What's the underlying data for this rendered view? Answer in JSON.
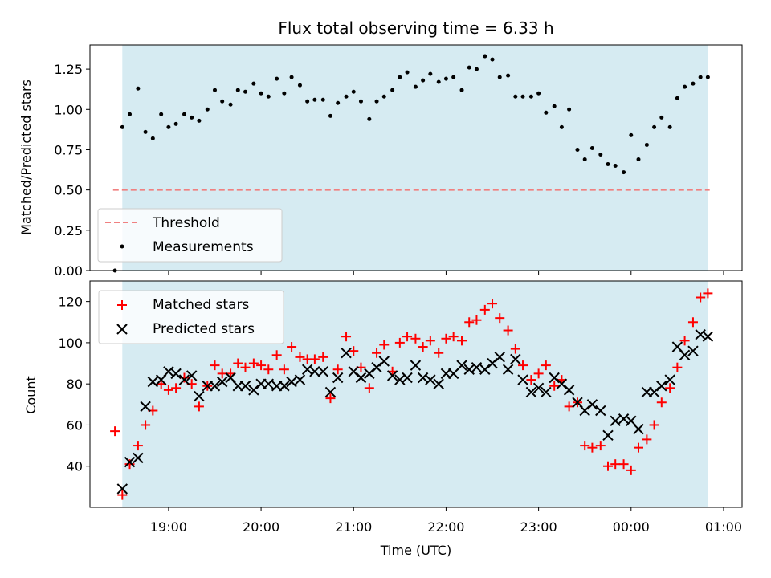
{
  "chart_data": [
    {
      "type": "scatter",
      "title": "Flux total observing time = 6.33 h",
      "ylabel": "Matched/Predicted stars",
      "xlabel": "",
      "ylim": [
        0,
        1.4
      ],
      "xlim_hours": [
        18.15,
        25.2
      ],
      "yticks": [
        0.0,
        0.25,
        0.5,
        0.75,
        1.0,
        1.25
      ],
      "ytick_labels": [
        "0.00",
        "0.25",
        "0.50",
        "0.75",
        "1.00",
        "1.25"
      ],
      "shaded_region_hours": [
        18.5,
        24.83
      ],
      "threshold": {
        "name": "Threshold",
        "value": 0.5,
        "from_hours": 18.4,
        "to_hours": 24.85,
        "color": "#f08080"
      },
      "series": [
        {
          "name": "Measurements",
          "color": "#000000",
          "marker": "dot",
          "x": [
            18.42,
            18.5,
            18.58,
            18.67,
            18.75,
            18.83,
            18.92,
            19.0,
            19.08,
            19.17,
            19.25,
            19.33,
            19.42,
            19.5,
            19.58,
            19.67,
            19.75,
            19.83,
            19.92,
            20.0,
            20.08,
            20.17,
            20.25,
            20.33,
            20.42,
            20.5,
            20.58,
            20.67,
            20.75,
            20.83,
            20.92,
            21.0,
            21.08,
            21.17,
            21.25,
            21.33,
            21.42,
            21.5,
            21.58,
            21.67,
            21.75,
            21.83,
            21.92,
            22.0,
            22.08,
            22.17,
            22.25,
            22.33,
            22.42,
            22.5,
            22.58,
            22.67,
            22.75,
            22.83,
            22.92,
            23.0,
            23.08,
            23.17,
            23.25,
            23.33,
            23.42,
            23.5,
            23.58,
            23.67,
            23.75,
            23.83,
            23.92,
            24.0,
            24.08,
            24.17,
            24.25,
            24.33,
            24.42,
            24.5,
            24.58,
            24.67,
            24.75,
            24.83
          ],
          "y": [
            0.0,
            0.89,
            0.97,
            1.13,
            0.86,
            0.82,
            0.97,
            0.89,
            0.91,
            0.97,
            0.95,
            0.93,
            1.0,
            1.12,
            1.05,
            1.03,
            1.12,
            1.11,
            1.16,
            1.1,
            1.08,
            1.19,
            1.1,
            1.2,
            1.15,
            1.05,
            1.06,
            1.06,
            0.96,
            1.04,
            1.08,
            1.11,
            1.05,
            0.94,
            1.05,
            1.08,
            1.12,
            1.2,
            1.23,
            1.14,
            1.18,
            1.22,
            1.17,
            1.19,
            1.2,
            1.12,
            1.26,
            1.25,
            1.33,
            1.31,
            1.2,
            1.21,
            1.08,
            1.08,
            1.08,
            1.1,
            0.98,
            1.02,
            0.89,
            1.0,
            0.75,
            0.69,
            0.76,
            0.72,
            0.66,
            0.65,
            0.61,
            0.84,
            0.69,
            0.78,
            0.89,
            0.95,
            0.89,
            1.07,
            1.14,
            1.16,
            1.2,
            1.2
          ]
        }
      ],
      "legend": {
        "placement": "lower-left",
        "entries": [
          "Threshold",
          "Measurements"
        ]
      }
    },
    {
      "type": "scatter",
      "title": "",
      "ylabel": "Count",
      "xlabel": "Time (UTC)",
      "ylim": [
        20,
        130
      ],
      "xlim_hours": [
        18.15,
        25.2
      ],
      "yticks": [
        40,
        60,
        80,
        100,
        120
      ],
      "ytick_labels": [
        "40",
        "60",
        "80",
        "100",
        "120"
      ],
      "xticks_hours": [
        19,
        20,
        21,
        22,
        23,
        24,
        25
      ],
      "xtick_labels": [
        "19:00",
        "20:00",
        "21:00",
        "22:00",
        "23:00",
        "00:00",
        "01:00"
      ],
      "shaded_region_hours": [
        18.5,
        24.83
      ],
      "series": [
        {
          "name": "Matched stars",
          "color": "#ff0000",
          "marker": "plus",
          "x": [
            18.42,
            18.5,
            18.58,
            18.67,
            18.75,
            18.83,
            18.92,
            19.0,
            19.08,
            19.17,
            19.25,
            19.33,
            19.42,
            19.5,
            19.58,
            19.67,
            19.75,
            19.83,
            19.92,
            20.0,
            20.08,
            20.17,
            20.25,
            20.33,
            20.42,
            20.5,
            20.58,
            20.67,
            20.75,
            20.83,
            20.92,
            21.0,
            21.08,
            21.17,
            21.25,
            21.33,
            21.42,
            21.5,
            21.58,
            21.67,
            21.75,
            21.83,
            21.92,
            22.0,
            22.08,
            22.17,
            22.25,
            22.33,
            22.42,
            22.5,
            22.58,
            22.67,
            22.75,
            22.83,
            22.92,
            23.0,
            23.08,
            23.17,
            23.25,
            23.33,
            23.42,
            23.5,
            23.58,
            23.67,
            23.75,
            23.83,
            23.92,
            24.0,
            24.08,
            24.17,
            24.25,
            24.33,
            24.42,
            24.5,
            24.58,
            24.67,
            24.75,
            24.83
          ],
          "y": [
            57,
            26,
            41,
            50,
            60,
            67,
            80,
            77,
            78,
            83,
            80,
            69,
            79,
            89,
            85,
            85,
            90,
            88,
            90,
            89,
            87,
            94,
            87,
            98,
            93,
            92,
            92,
            93,
            73,
            87,
            103,
            96,
            88,
            78,
            95,
            99,
            86,
            100,
            103,
            102,
            98,
            101,
            95,
            102,
            103,
            101,
            110,
            111,
            116,
            119,
            112,
            106,
            97,
            89,
            82,
            85,
            89,
            79,
            82,
            69,
            71,
            50,
            49,
            50,
            40,
            41,
            41,
            38,
            49,
            53,
            60,
            71,
            78,
            88,
            101,
            110,
            122,
            124
          ]
        },
        {
          "name": "Predicted stars",
          "color": "#000000",
          "marker": "cross",
          "x": [
            18.5,
            18.58,
            18.67,
            18.75,
            18.83,
            18.92,
            19.0,
            19.08,
            19.17,
            19.25,
            19.33,
            19.42,
            19.5,
            19.58,
            19.67,
            19.75,
            19.83,
            19.92,
            20.0,
            20.08,
            20.17,
            20.25,
            20.33,
            20.42,
            20.5,
            20.58,
            20.67,
            20.75,
            20.83,
            20.92,
            21.0,
            21.08,
            21.17,
            21.25,
            21.33,
            21.42,
            21.5,
            21.58,
            21.67,
            21.75,
            21.83,
            21.92,
            22.0,
            22.08,
            22.17,
            22.25,
            22.33,
            22.42,
            22.5,
            22.58,
            22.67,
            22.75,
            22.83,
            22.92,
            23.0,
            23.08,
            23.17,
            23.25,
            23.33,
            23.42,
            23.5,
            23.58,
            23.67,
            23.75,
            23.83,
            23.92,
            24.0,
            24.08,
            24.17,
            24.25,
            24.33,
            24.42,
            24.5,
            24.58,
            24.67,
            24.75,
            24.83
          ],
          "y": [
            29,
            42,
            44,
            69,
            81,
            82,
            86,
            85,
            82,
            84,
            74,
            79,
            79,
            81,
            83,
            79,
            79,
            77,
            80,
            80,
            79,
            79,
            81,
            82,
            87,
            86,
            86,
            76,
            83,
            95,
            86,
            83,
            85,
            88,
            91,
            84,
            82,
            83,
            89,
            83,
            82,
            80,
            85,
            85,
            89,
            87,
            88,
            87,
            90,
            93,
            87,
            92,
            82,
            76,
            78,
            76,
            83,
            80,
            77,
            71,
            67,
            70,
            67,
            55,
            62,
            63,
            62,
            58,
            76,
            76,
            79,
            82,
            98,
            94,
            96,
            104,
            103
          ]
        }
      ],
      "legend": {
        "placement": "top-left",
        "entries": [
          "Matched stars",
          "Predicted stars"
        ]
      }
    }
  ],
  "colors": {
    "shade": "#add8e6",
    "threshold": "#f08080",
    "matched": "#ff0000",
    "predicted": "#000000"
  }
}
